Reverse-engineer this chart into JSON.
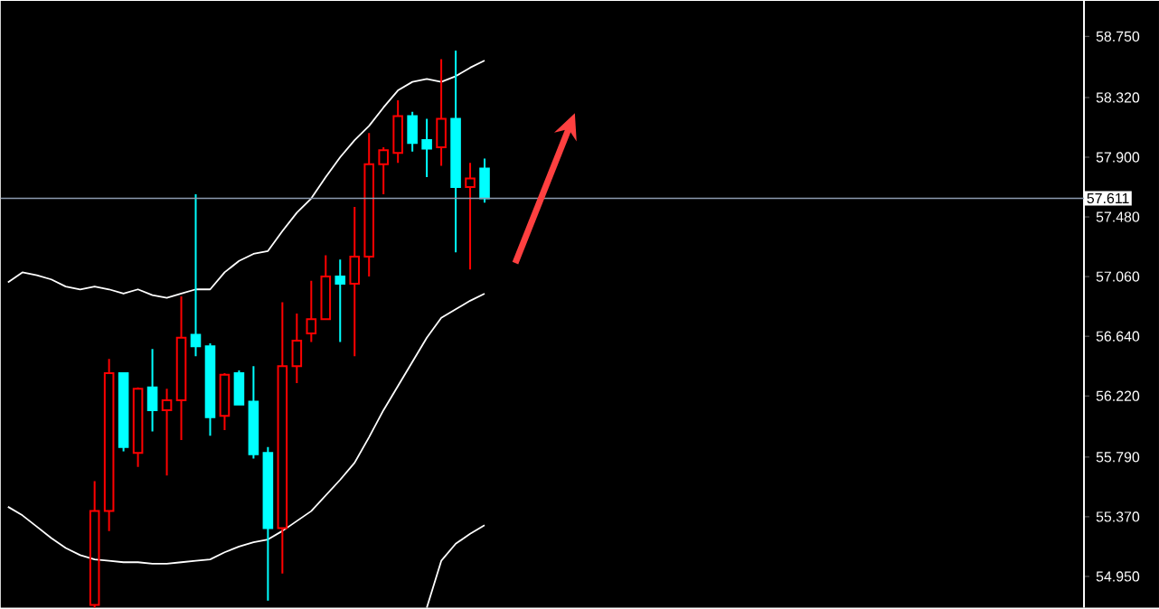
{
  "chart_data": {
    "type": "candlestick",
    "categories": [
      null,
      null,
      null,
      null,
      null,
      null,
      null,
      null,
      null,
      null,
      null,
      null,
      null,
      null,
      null,
      null,
      null,
      null,
      null,
      null,
      null,
      null,
      null,
      null,
      null,
      null,
      null,
      null,
      null,
      null,
      null,
      null,
      null,
      null,
      null,
      null,
      null,
      null,
      null,
      null,
      null,
      null,
      null,
      null,
      null,
      null,
      null,
      null,
      null,
      null,
      null,
      null,
      null,
      null,
      null,
      null,
      null,
      null,
      null,
      null,
      null,
      null,
      null,
      null,
      null,
      null,
      null,
      null,
      null,
      null,
      null,
      null,
      null,
      null,
      null
    ],
    "ohlc": [
      null,
      null,
      null,
      null,
      null,
      null,
      [
        54.75,
        55.62,
        54.73,
        55.41
      ],
      [
        55.41,
        56.48,
        55.27,
        56.38
      ],
      [
        56.38,
        56.38,
        55.83,
        55.86
      ],
      [
        55.82,
        56.28,
        55.72,
        56.27
      ],
      [
        56.28,
        56.55,
        55.97,
        56.12
      ],
      [
        56.12,
        56.27,
        55.66,
        56.19
      ],
      [
        56.19,
        56.92,
        55.91,
        56.63
      ],
      [
        56.65,
        57.64,
        56.5,
        56.57
      ],
      [
        56.57,
        56.59,
        55.94,
        56.07
      ],
      [
        56.08,
        56.38,
        55.98,
        56.37
      ],
      [
        56.38,
        56.4,
        56.16,
        56.16
      ],
      [
        56.18,
        56.43,
        55.78,
        55.81
      ],
      [
        55.82,
        55.86,
        54.78,
        55.29
      ],
      [
        55.29,
        56.88,
        54.97,
        56.43
      ],
      [
        56.43,
        56.8,
        56.31,
        56.61
      ],
      [
        56.66,
        57.03,
        56.6,
        56.76
      ],
      [
        56.76,
        57.21,
        56.76,
        57.06
      ],
      [
        57.06,
        57.18,
        56.6,
        57.01
      ],
      [
        57.01,
        57.55,
        56.5,
        57.2
      ],
      [
        57.2,
        58.07,
        57.06,
        57.85
      ],
      [
        57.85,
        57.97,
        57.64,
        57.95
      ],
      [
        57.93,
        58.3,
        57.86,
        58.19
      ],
      [
        58.19,
        58.22,
        57.94,
        58.0
      ],
      [
        58.02,
        58.17,
        57.76,
        57.96
      ],
      [
        57.97,
        58.59,
        57.84,
        58.17
      ],
      [
        58.17,
        58.65,
        57.23,
        57.69
      ],
      [
        57.69,
        57.86,
        57.11,
        57.75
      ],
      [
        57.82,
        57.89,
        57.58,
        57.611
      ],
      null,
      null,
      null,
      null,
      null,
      null,
      null,
      null,
      null,
      null,
      null,
      null,
      null,
      null,
      null,
      null,
      null,
      null,
      null,
      null,
      null,
      null,
      null,
      null,
      null,
      null,
      null,
      null,
      null,
      null,
      null,
      null,
      null,
      null,
      null,
      null,
      null,
      null,
      null,
      null,
      null
    ],
    "colors": [
      null,
      null,
      null,
      null,
      null,
      null,
      "#ff0000",
      "#ff0000",
      "#00ffff",
      "#ff0000",
      "#00ffff",
      "#ff0000",
      "#ff0000",
      "#00ffff",
      "#00ffff",
      "#ff0000",
      "#00ffff",
      "#00ffff",
      "#00ffff",
      "#ff0000",
      "#ff0000",
      "#ff0000",
      "#ff0000",
      "#00ffff",
      "#ff0000",
      "#ff0000",
      "#ff0000",
      "#ff0000",
      "#00ffff",
      "#00ffff",
      "#ff0000",
      "#00ffff",
      "#ff0000",
      "#00ffff",
      null,
      null,
      null,
      null,
      null,
      null,
      null,
      null,
      null,
      null,
      null,
      null,
      null,
      null,
      null,
      null,
      null,
      null,
      null,
      null,
      null,
      null,
      null,
      null,
      null,
      null,
      null,
      null,
      null,
      null,
      null,
      null,
      null,
      null,
      null,
      null,
      null,
      null,
      null,
      null,
      null
    ],
    "series": [
      {
        "type": "line",
        "color": "#ffffff",
        "values": [
          57.02,
          57.09,
          57.07,
          57.04,
          56.99,
          56.97,
          56.99,
          56.97,
          56.94,
          56.97,
          56.93,
          56.91,
          56.94,
          56.97,
          56.97,
          57.09,
          57.17,
          57.22,
          57.24,
          57.38,
          57.51,
          57.61,
          57.76,
          57.9,
          58.02,
          58.12,
          58.25,
          58.37,
          58.43,
          58.45,
          58.43,
          58.47,
          58.53,
          58.58,
          null,
          null,
          null,
          null,
          null,
          null,
          null,
          null,
          null,
          null,
          null,
          null,
          null,
          null,
          null,
          null,
          null,
          null,
          null,
          null,
          null,
          null,
          null,
          null,
          null,
          null,
          null,
          null,
          null,
          null,
          null,
          null,
          null,
          null,
          null,
          null,
          null,
          null,
          null,
          null,
          null
        ]
      },
      {
        "type": "line",
        "color": "#ffffff",
        "values": [
          55.44,
          55.38,
          55.3,
          55.22,
          55.15,
          55.1,
          55.07,
          55.06,
          55.05,
          55.05,
          55.04,
          55.04,
          55.05,
          55.06,
          55.07,
          55.12,
          55.16,
          55.19,
          55.21,
          55.27,
          55.34,
          55.41,
          55.52,
          55.63,
          55.75,
          55.93,
          56.12,
          56.29,
          56.46,
          56.63,
          56.77,
          56.83,
          56.89,
          56.94,
          null,
          null,
          null,
          null,
          null,
          null,
          null,
          null,
          null,
          null,
          null,
          null,
          null,
          null,
          null,
          null,
          null,
          null,
          null,
          null,
          null,
          null,
          null,
          null,
          null,
          null,
          null,
          null,
          null,
          null,
          null,
          null,
          null,
          null,
          null,
          null,
          null,
          null,
          null,
          null,
          null
        ]
      },
      {
        "type": "line",
        "color": "#ffffff",
        "values": [
          null,
          null,
          null,
          null,
          null,
          null,
          null,
          null,
          null,
          null,
          null,
          null,
          null,
          null,
          null,
          null,
          null,
          null,
          null,
          null,
          null,
          null,
          null,
          null,
          null,
          null,
          null,
          null,
          null,
          54.73,
          55.06,
          55.18,
          55.25,
          55.31,
          null,
          null,
          null,
          null,
          null,
          null,
          null,
          null,
          null,
          null,
          null,
          null,
          null,
          null,
          null,
          null,
          null,
          null,
          null,
          null,
          null,
          null,
          null,
          null,
          null,
          null,
          null,
          null,
          null,
          null,
          null,
          null,
          null,
          null,
          null,
          null,
          null,
          null,
          null,
          null,
          null
        ]
      }
    ],
    "ylim": [
      54.73,
      59.0
    ],
    "yticks": [
      {
        "value": 54.95,
        "label": "54.950"
      },
      {
        "value": 55.37,
        "label": "55.370"
      },
      {
        "value": 55.79,
        "label": "55.790"
      },
      {
        "value": 56.22,
        "label": "56.220"
      },
      {
        "value": 56.64,
        "label": "56.640"
      },
      {
        "value": 57.06,
        "label": "57.060"
      },
      {
        "value": 57.48,
        "label": "57.480"
      },
      {
        "value": 57.9,
        "label": "57.900"
      },
      {
        "value": 58.32,
        "label": "58.320"
      },
      {
        "value": 58.75,
        "label": "58.750"
      }
    ],
    "ref_lines": [
      {
        "axis": "y",
        "value": 57.611,
        "label": "57.611",
        "color": "#8c9bb0"
      }
    ],
    "tick_labels": "y",
    "grid": false
  }
}
